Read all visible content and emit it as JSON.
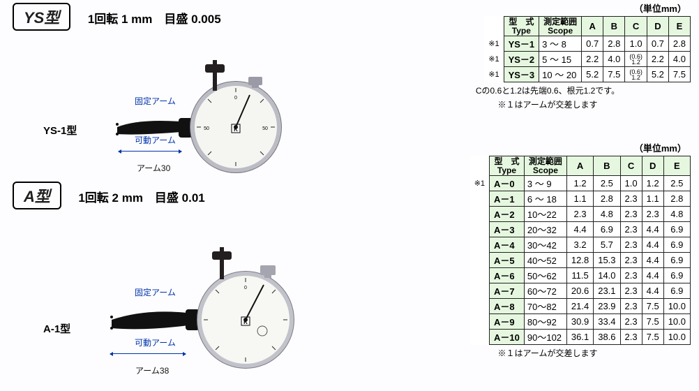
{
  "unit_label": "（単位mm）",
  "sections": [
    {
      "title": "YS型",
      "spec": "1回転 1 mm　目盛 0.005",
      "model_label": "YS-1型",
      "fixed_arm_label": "固定アーム",
      "movable_arm_label": "可動アーム",
      "arm_dim": "アーム30",
      "gauge": {
        "dial_radius": 62,
        "dial_fill": "#f5f5f2",
        "dial_stroke": "#bcbcc4",
        "dial_stroke_w": 6,
        "knurl_color": "#74747e",
        "brand": "K",
        "tick_color": "#222",
        "needle_color": "#111",
        "thumbscrew_color": "#231f20",
        "crown_color": "#9b9ba7"
      }
    },
    {
      "title": "A型",
      "spec": "1回転 2 mm　目盛 0.01",
      "model_label": "A-1型",
      "fixed_arm_label": "固定アーム",
      "movable_arm_label": "可動アーム",
      "arm_dim": "アーム38",
      "gauge": {
        "dial_radius": 66,
        "dial_fill": "#f7f7f3",
        "dial_stroke": "#c2c2cb",
        "dial_stroke_w": 6,
        "knurl_color": "#7a7a86",
        "brand": "K",
        "tick_color": "#222",
        "needle_color": "#111",
        "thumbscrew_color": "#231f20",
        "crown_color": "#a5a5b0"
      }
    }
  ],
  "table1": {
    "headers": {
      "type": "型　式\nType",
      "scope": "測定範囲\nScope",
      "a": "A",
      "b": "B",
      "c": "C",
      "d": "D",
      "e": "E"
    },
    "rows": [
      {
        "mark": "※1",
        "type": "YS－1",
        "scope": "3 ～ 8",
        "a": "0.7",
        "b": "2.8",
        "c": "1.0",
        "d": "0.7",
        "e": "2.8"
      },
      {
        "mark": "※1",
        "type": "YS－2",
        "scope": "5 ～ 15",
        "a": "2.2",
        "b": "4.0",
        "c_sub": "(0.6)\n1.2",
        "d": "2.2",
        "e": "4.0"
      },
      {
        "mark": "※1",
        "type": "YS－3",
        "scope": "10 ～ 20",
        "a": "5.2",
        "b": "7.5",
        "c_sub": "(0.6)\n1.2",
        "d": "5.2",
        "e": "7.5"
      }
    ],
    "note1": "Cの0.6と1.2は先端0.6、根元1.2です。",
    "note2": "※１はアームが交差します"
  },
  "table2": {
    "headers": {
      "type": "型　式\nType",
      "scope": "測定範囲\nScope",
      "a": "A",
      "b": "B",
      "c": "C",
      "d": "D",
      "e": "E"
    },
    "rows": [
      {
        "mark": "※1",
        "type": "A－0",
        "scope": "3 ～ 9",
        "a": "1.2",
        "b": "2.5",
        "c": "1.0",
        "d": "1.2",
        "e": "2.5"
      },
      {
        "mark": "",
        "type": "A－1",
        "scope": "6 ～ 18",
        "a": "1.1",
        "b": "2.8",
        "c": "2.3",
        "d": "1.1",
        "e": "2.8"
      },
      {
        "mark": "",
        "type": "A－2",
        "scope": "10～22",
        "a": "2.3",
        "b": "4.8",
        "c": "2.3",
        "d": "2.3",
        "e": "4.8"
      },
      {
        "mark": "",
        "type": "A－3",
        "scope": "20～32",
        "a": "4.4",
        "b": "6.9",
        "c": "2.3",
        "d": "4.4",
        "e": "6.9"
      },
      {
        "mark": "",
        "type": "A－4",
        "scope": "30～42",
        "a": "3.2",
        "b": "5.7",
        "c": "2.3",
        "d": "4.4",
        "e": "6.9"
      },
      {
        "mark": "",
        "type": "A－5",
        "scope": "40～52",
        "a": "12.8",
        "b": "15.3",
        "c": "2.3",
        "d": "4.4",
        "e": "6.9"
      },
      {
        "mark": "",
        "type": "A－6",
        "scope": "50～62",
        "a": "11.5",
        "b": "14.0",
        "c": "2.3",
        "d": "4.4",
        "e": "6.9"
      },
      {
        "mark": "",
        "type": "A－7",
        "scope": "60～72",
        "a": "20.6",
        "b": "23.1",
        "c": "2.3",
        "d": "4.4",
        "e": "6.9"
      },
      {
        "mark": "",
        "type": "A－8",
        "scope": "70～82",
        "a": "21.4",
        "b": "23.9",
        "c": "2.3",
        "d": "7.5",
        "e": "10.0"
      },
      {
        "mark": "",
        "type": "A－9",
        "scope": "80～92",
        "a": "30.9",
        "b": "33.4",
        "c": "2.3",
        "d": "7.5",
        "e": "10.0"
      },
      {
        "mark": "",
        "type": "A－10",
        "scope": "90～102",
        "a": "36.1",
        "b": "38.6",
        "c": "2.3",
        "d": "7.5",
        "e": "10.0"
      }
    ],
    "note": "※１はアームが交差します"
  },
  "colors": {
    "header_bg": "#e6f7e0",
    "border": "#222222",
    "accent": "#0033aa"
  }
}
